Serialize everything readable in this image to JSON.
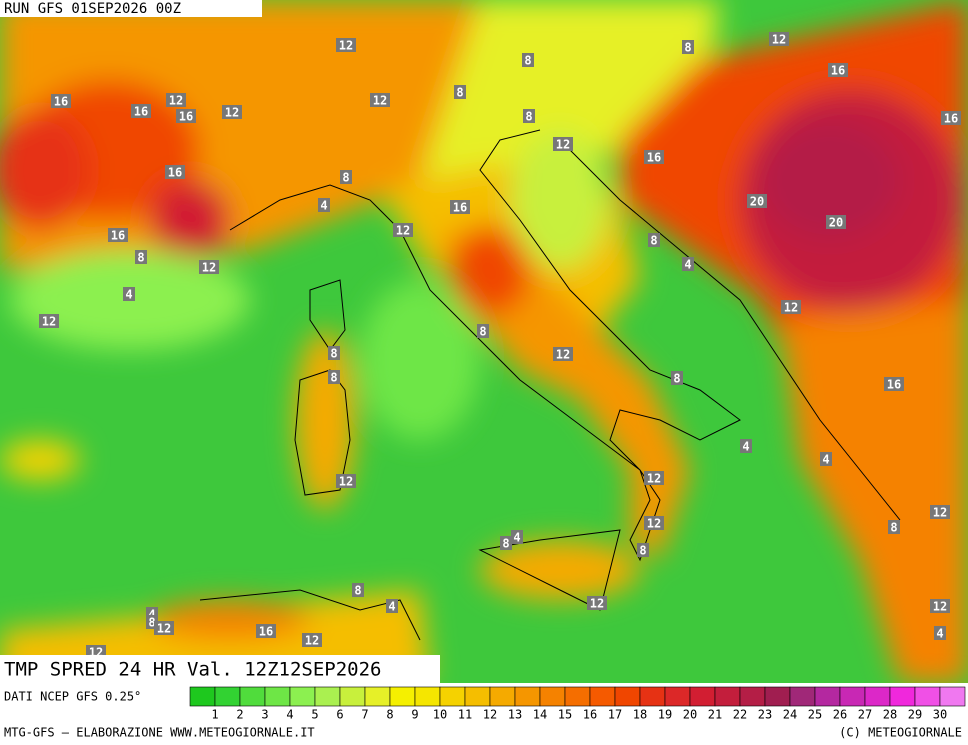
{
  "header": {
    "run": "RUN GFS 01SEP2026 00Z",
    "title": "TMP SPRED 24 HR Val. 12Z12SEP2026",
    "source": "DATI NCEP GFS 0.25°"
  },
  "footer": {
    "left": "MTG-GFS — ELABORAZIONE WWW.METEOGIORNALE.IT",
    "right": "(C) METEOGIORNALE"
  },
  "colorbar": {
    "levels": [
      1,
      2,
      3,
      4,
      5,
      6,
      7,
      8,
      9,
      10,
      11,
      12,
      13,
      14,
      15,
      16,
      17,
      18,
      19,
      20,
      21,
      22,
      23,
      24,
      25,
      26,
      27,
      28,
      29,
      30
    ],
    "colors": [
      "#1ec81e",
      "#32d232",
      "#50dc3c",
      "#6ee646",
      "#8cf050",
      "#aaf050",
      "#c8f03c",
      "#e6f028",
      "#f5f000",
      "#f5e600",
      "#f5d200",
      "#f5be00",
      "#f5aa00",
      "#f59600",
      "#f58200",
      "#f56e00",
      "#f55a00",
      "#f04600",
      "#e63214",
      "#dc2828",
      "#d21e32",
      "#c31e3c",
      "#b41e46",
      "#a01e50",
      "#a02878",
      "#b428a0",
      "#c828b4",
      "#dc28c8",
      "#f028dc",
      "#f050e6",
      "#f078f0"
    ]
  },
  "map_labels": [
    12,
    8,
    8,
    12,
    16,
    16,
    16,
    12,
    16,
    12,
    12,
    8,
    8,
    16,
    12,
    16,
    16,
    8,
    4,
    16,
    20,
    20,
    12,
    16,
    8,
    12,
    8,
    4,
    4,
    12,
    12,
    8,
    8,
    8,
    12,
    8,
    16,
    4,
    4,
    12,
    12,
    12,
    12,
    8,
    4,
    8,
    8,
    8,
    4,
    12,
    4,
    8,
    12,
    16,
    12,
    12,
    4,
    12
  ]
}
